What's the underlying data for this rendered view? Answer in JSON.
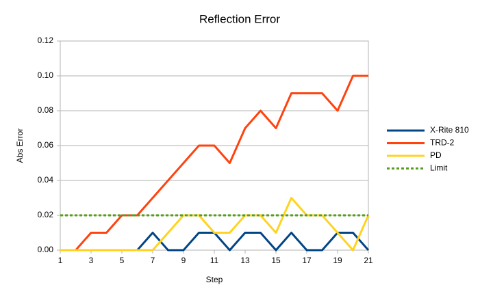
{
  "chart_data": {
    "type": "line",
    "title": "Reflection Error",
    "x_label": "Step",
    "y_label": "Abs Error",
    "x": [
      1,
      2,
      3,
      4,
      5,
      6,
      7,
      8,
      9,
      10,
      11,
      12,
      13,
      14,
      15,
      16,
      17,
      18,
      19,
      20,
      21
    ],
    "xlim": [
      1,
      21
    ],
    "xticks": [
      1,
      3,
      5,
      7,
      9,
      11,
      13,
      15,
      17,
      19,
      21
    ],
    "ylim": [
      0,
      0.12
    ],
    "yticks": [
      {
        "value": 0,
        "label": "0.00"
      },
      {
        "value": 0.02,
        "label": "0.02"
      },
      {
        "value": 0.04,
        "label": "0.04"
      },
      {
        "value": 0.06,
        "label": "0.06"
      },
      {
        "value": 0.08,
        "label": "0.08"
      },
      {
        "value": 0.1,
        "label": "0.10"
      },
      {
        "value": 0.12,
        "label": "0.12"
      }
    ],
    "grid": true,
    "legend": "right",
    "series": [
      {
        "name": "X-Rite 810",
        "color": "#004586",
        "values": [
          0,
          0,
          0,
          0,
          0,
          0,
          0.01,
          0,
          0,
          0.01,
          0.01,
          0,
          0.01,
          0.01,
          0,
          0.01,
          0,
          0,
          0.01,
          0.01,
          0
        ]
      },
      {
        "name": "TRD-2",
        "color": "#ff420e",
        "values": [
          0,
          0,
          0.01,
          0.01,
          0.02,
          0.02,
          0.03,
          0.04,
          0.05,
          0.06,
          0.06,
          0.05,
          0.07,
          0.08,
          0.07,
          0.09,
          0.09,
          0.09,
          0.08,
          0.1,
          0.1
        ]
      },
      {
        "name": "PD",
        "color": "#ffd320",
        "values": [
          0,
          0,
          0,
          0,
          0,
          0,
          0,
          0.01,
          0.02,
          0.02,
          0.01,
          0.01,
          0.02,
          0.02,
          0.01,
          0.03,
          0.02,
          0.02,
          0.01,
          0,
          0.02
        ]
      },
      {
        "name": "Limit",
        "color": "#579d1c",
        "dashed": true,
        "values": [
          0.02,
          0.02,
          0.02,
          0.02,
          0.02,
          0.02,
          0.02,
          0.02,
          0.02,
          0.02,
          0.02,
          0.02,
          0.02,
          0.02,
          0.02,
          0.02,
          0.02,
          0.02,
          0.02,
          0.02,
          0.02
        ]
      }
    ]
  }
}
